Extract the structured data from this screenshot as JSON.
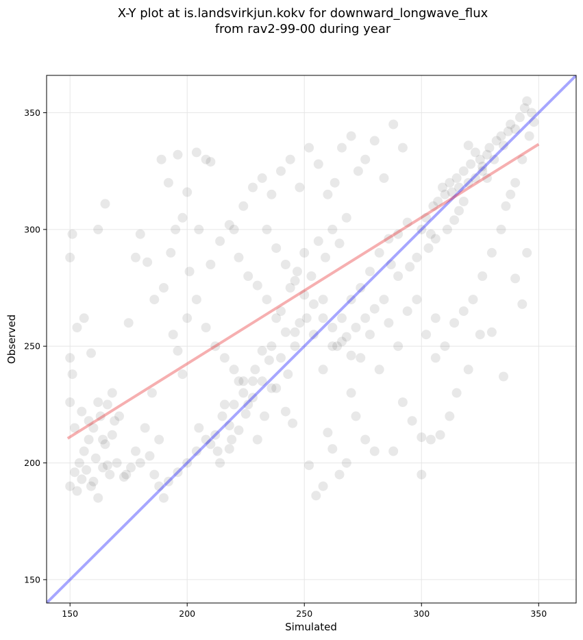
{
  "chart_data": {
    "type": "scatter",
    "title": "X-Y plot at is.landsvirkjun.kokv for downward_longwave_flux",
    "subtitle": "from rav2-99-00 during year",
    "xlabel": "Simulated",
    "ylabel": "Observed",
    "xlim": [
      140,
      366
    ],
    "ylim": [
      140,
      366
    ],
    "xticks": [
      150,
      200,
      250,
      300,
      350
    ],
    "yticks": [
      150,
      200,
      250,
      300,
      350
    ],
    "grid": true,
    "colors": {
      "points": "#000000",
      "identity_line": "#0000ff",
      "fit_line": "#e41a1c"
    },
    "series": [
      {
        "points": [
          [
            150,
            190
          ],
          [
            152,
            196
          ],
          [
            153,
            188
          ],
          [
            154,
            200
          ],
          [
            155,
            193
          ],
          [
            156,
            205
          ],
          [
            157,
            197
          ],
          [
            158,
            210
          ],
          [
            159,
            190
          ],
          [
            160,
            215
          ],
          [
            161,
            202
          ],
          [
            162,
            185
          ],
          [
            163,
            220
          ],
          [
            164,
            198
          ],
          [
            165,
            208
          ],
          [
            166,
            225
          ],
          [
            167,
            195
          ],
          [
            168,
            212
          ],
          [
            169,
            218
          ],
          [
            170,
            200
          ],
          [
            152,
            215
          ],
          [
            155,
            222
          ],
          [
            158,
            218
          ],
          [
            160,
            192
          ],
          [
            162,
            226
          ],
          [
            164,
            210
          ],
          [
            166,
            199
          ],
          [
            168,
            230
          ],
          [
            171,
            220
          ],
          [
            173,
            194
          ],
          [
            150,
            245
          ],
          [
            151,
            238
          ],
          [
            150,
            226
          ],
          [
            151,
            298
          ],
          [
            150,
            288
          ],
          [
            153,
            258
          ],
          [
            156,
            262
          ],
          [
            159,
            247
          ],
          [
            162,
            300
          ],
          [
            165,
            311
          ],
          [
            174,
            195
          ],
          [
            176,
            198
          ],
          [
            178,
            205
          ],
          [
            180,
            200
          ],
          [
            182,
            215
          ],
          [
            184,
            203
          ],
          [
            186,
            195
          ],
          [
            188,
            190
          ],
          [
            190,
            185
          ],
          [
            192,
            192
          ],
          [
            185,
            230
          ],
          [
            188,
            210
          ],
          [
            190,
            275
          ],
          [
            193,
            290
          ],
          [
            195,
            300
          ],
          [
            192,
            320
          ],
          [
            198,
            305
          ],
          [
            201,
            282
          ],
          [
            205,
            300
          ],
          [
            208,
            330
          ],
          [
            175,
            260
          ],
          [
            178,
            288
          ],
          [
            180,
            298
          ],
          [
            183,
            286
          ],
          [
            186,
            270
          ],
          [
            189,
            330
          ],
          [
            196,
            332
          ],
          [
            200,
            316
          ],
          [
            204,
            333
          ],
          [
            210,
            329
          ],
          [
            196,
            196
          ],
          [
            200,
            200
          ],
          [
            204,
            205
          ],
          [
            208,
            210
          ],
          [
            212,
            212
          ],
          [
            215,
            220
          ],
          [
            218,
            216
          ],
          [
            220,
            225
          ],
          [
            224,
            230
          ],
          [
            228,
            235
          ],
          [
            205,
            215
          ],
          [
            210,
            208
          ],
          [
            213,
            205
          ],
          [
            216,
            225
          ],
          [
            219,
            210
          ],
          [
            222,
            235
          ],
          [
            226,
            225
          ],
          [
            229,
            240
          ],
          [
            232,
            248
          ],
          [
            236,
            250
          ],
          [
            230,
            210
          ],
          [
            233,
            220
          ],
          [
            236,
            232
          ],
          [
            240,
            245
          ],
          [
            243,
            238
          ],
          [
            246,
            256
          ],
          [
            248,
            260
          ],
          [
            251,
            262
          ],
          [
            254,
            255
          ],
          [
            258,
            270
          ],
          [
            240,
            265
          ],
          [
            244,
            275
          ],
          [
            247,
            282
          ],
          [
            250,
            290
          ],
          [
            253,
            280
          ],
          [
            256,
            295
          ],
          [
            259,
            288
          ],
          [
            262,
            300
          ],
          [
            265,
            294
          ],
          [
            268,
            305
          ],
          [
            220,
            300
          ],
          [
            224,
            310
          ],
          [
            228,
            318
          ],
          [
            232,
            322
          ],
          [
            236,
            315
          ],
          [
            240,
            325
          ],
          [
            244,
            330
          ],
          [
            248,
            318
          ],
          [
            252,
            335
          ],
          [
            256,
            328
          ],
          [
            260,
            315
          ],
          [
            263,
            320
          ],
          [
            266,
            335
          ],
          [
            270,
            340
          ],
          [
            273,
            325
          ],
          [
            276,
            330
          ],
          [
            280,
            338
          ],
          [
            284,
            322
          ],
          [
            288,
            345
          ],
          [
            292,
            335
          ],
          [
            258,
            240
          ],
          [
            262,
            250
          ],
          [
            266,
            262
          ],
          [
            270,
            270
          ],
          [
            274,
            275
          ],
          [
            278,
            282
          ],
          [
            282,
            290
          ],
          [
            286,
            296
          ],
          [
            290,
            298
          ],
          [
            294,
            303
          ],
          [
            270,
            230
          ],
          [
            274,
            245
          ],
          [
            278,
            255
          ],
          [
            282,
            240
          ],
          [
            286,
            260
          ],
          [
            290,
            250
          ],
          [
            294,
            265
          ],
          [
            298,
            270
          ],
          [
            302,
            255
          ],
          [
            306,
            262
          ],
          [
            300,
            195
          ],
          [
            304,
            210
          ],
          [
            300,
            300
          ],
          [
            302,
            305
          ],
          [
            304,
            298
          ],
          [
            305,
            310
          ],
          [
            307,
            312
          ],
          [
            309,
            318
          ],
          [
            310,
            315
          ],
          [
            312,
            320
          ],
          [
            313,
            316
          ],
          [
            315,
            322
          ],
          [
            316,
            318
          ],
          [
            318,
            325
          ],
          [
            320,
            320
          ],
          [
            321,
            328
          ],
          [
            323,
            322
          ],
          [
            325,
            330
          ],
          [
            326,
            327
          ],
          [
            328,
            332
          ],
          [
            329,
            335
          ],
          [
            331,
            330
          ],
          [
            332,
            338
          ],
          [
            334,
            340
          ],
          [
            335,
            336
          ],
          [
            337,
            342
          ],
          [
            338,
            345
          ],
          [
            340,
            343
          ],
          [
            342,
            348
          ],
          [
            344,
            352
          ],
          [
            345,
            355
          ],
          [
            347,
            350
          ],
          [
            348,
            346
          ],
          [
            346,
            340
          ],
          [
            343,
            330
          ],
          [
            340,
            320
          ],
          [
            338,
            315
          ],
          [
            336,
            310
          ],
          [
            334,
            300
          ],
          [
            330,
            290
          ],
          [
            326,
            280
          ],
          [
            322,
            270
          ],
          [
            318,
            265
          ],
          [
            314,
            260
          ],
          [
            310,
            250
          ],
          [
            306,
            245
          ],
          [
            320,
            240
          ],
          [
            325,
            255
          ],
          [
            330,
            256
          ],
          [
            335,
            237
          ],
          [
            340,
            279
          ],
          [
            343,
            268
          ],
          [
            345,
            290
          ],
          [
            315,
            230
          ],
          [
            312,
            220
          ],
          [
            308,
            212
          ],
          [
            300,
            211
          ],
          [
            296,
            218
          ],
          [
            292,
            226
          ],
          [
            288,
            205
          ],
          [
            280,
            205
          ],
          [
            276,
            210
          ],
          [
            272,
            220
          ],
          [
            268,
            200
          ],
          [
            265,
            195
          ],
          [
            262,
            206
          ],
          [
            258,
            190
          ],
          [
            255,
            186
          ],
          [
            252,
            199
          ],
          [
            260,
            213
          ],
          [
            245,
            217
          ],
          [
            242,
            222
          ],
          [
            238,
            232
          ],
          [
            235,
            244
          ],
          [
            232,
            235
          ],
          [
            228,
            228
          ],
          [
            225,
            221
          ],
          [
            222,
            214
          ],
          [
            218,
            206
          ],
          [
            214,
            200
          ],
          [
            320,
            336
          ],
          [
            323,
            333
          ],
          [
            326,
            325
          ],
          [
            328,
            322
          ],
          [
            318,
            312
          ],
          [
            316,
            308
          ],
          [
            314,
            304
          ],
          [
            311,
            300
          ],
          [
            306,
            296
          ],
          [
            303,
            292
          ],
          [
            298,
            288
          ],
          [
            295,
            284
          ],
          [
            290,
            280
          ],
          [
            287,
            285
          ],
          [
            284,
            270
          ],
          [
            280,
            266
          ],
          [
            276,
            262
          ],
          [
            272,
            258
          ],
          [
            268,
            254
          ],
          [
            264,
            250
          ],
          [
            234,
            300
          ],
          [
            238,
            292
          ],
          [
            242,
            285
          ],
          [
            246,
            278
          ],
          [
            250,
            272
          ],
          [
            254,
            268
          ],
          [
            258,
            262
          ],
          [
            262,
            258
          ],
          [
            266,
            252
          ],
          [
            270,
            246
          ],
          [
            210,
            285
          ],
          [
            214,
            295
          ],
          [
            218,
            302
          ],
          [
            222,
            288
          ],
          [
            226,
            280
          ],
          [
            230,
            276
          ],
          [
            234,
            270
          ],
          [
            238,
            262
          ],
          [
            242,
            256
          ],
          [
            246,
            250
          ],
          [
            200,
            262
          ],
          [
            204,
            270
          ],
          [
            208,
            258
          ],
          [
            212,
            250
          ],
          [
            216,
            245
          ],
          [
            220,
            240
          ],
          [
            224,
            235
          ],
          [
            196,
            248
          ],
          [
            194,
            255
          ],
          [
            198,
            238
          ]
        ]
      }
    ],
    "lines": [
      {
        "name": "",
        "color": "#0000ff",
        "x": [
          140,
          366
        ],
        "y": [
          140,
          366
        ]
      },
      {
        "name": "",
        "color": "#e41a1c",
        "x": [
          149,
          350
        ],
        "y": [
          210.5,
          336.5
        ]
      }
    ]
  }
}
